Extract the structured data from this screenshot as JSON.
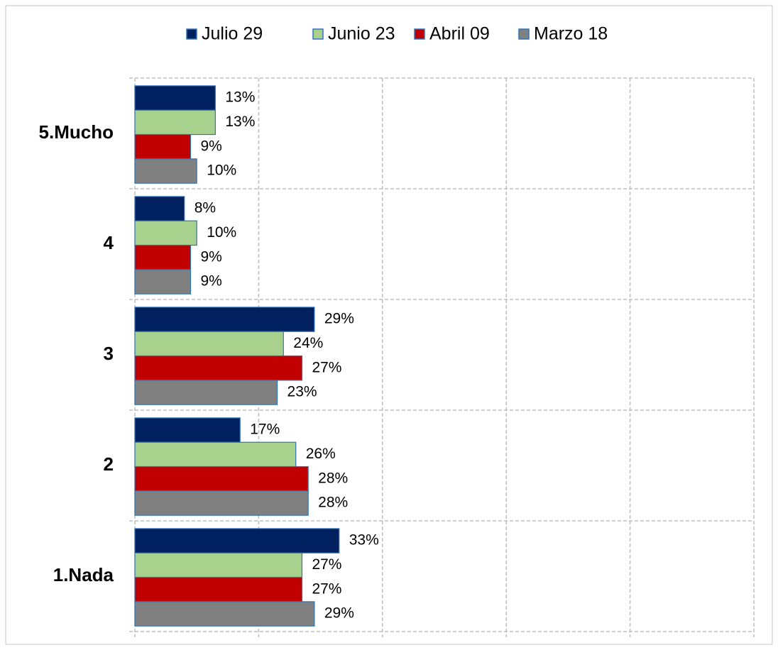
{
  "chart_data": {
    "type": "bar",
    "orientation": "horizontal",
    "categories": [
      "5.Mucho",
      "4",
      "3",
      "2",
      "1.Nada"
    ],
    "series": [
      {
        "name": "Julio 29",
        "color": "#002060",
        "values": [
          13,
          8,
          29,
          17,
          33
        ],
        "value_labels": [
          "13%",
          "8%",
          "29%",
          "17%",
          "33%"
        ]
      },
      {
        "name": "Junio 23",
        "color": "#a9d18e",
        "values": [
          13,
          10,
          24,
          26,
          27
        ],
        "value_labels": [
          "13%",
          "10%",
          "24%",
          "26%",
          "27%"
        ]
      },
      {
        "name": "Abril 09",
        "color": "#c00000",
        "values": [
          9,
          9,
          27,
          28,
          27
        ],
        "value_labels": [
          "9%",
          "9%",
          "27%",
          "28%",
          "27%"
        ]
      },
      {
        "name": "Marzo 18",
        "color": "#808080",
        "values": [
          10,
          9,
          23,
          28,
          29
        ],
        "value_labels": [
          "10%",
          "9%",
          "23%",
          "28%",
          "29%"
        ]
      }
    ],
    "xlim": [
      0,
      100
    ],
    "xticks": [
      0,
      20,
      40,
      60,
      80,
      100
    ],
    "grid": true,
    "legend": "top"
  }
}
